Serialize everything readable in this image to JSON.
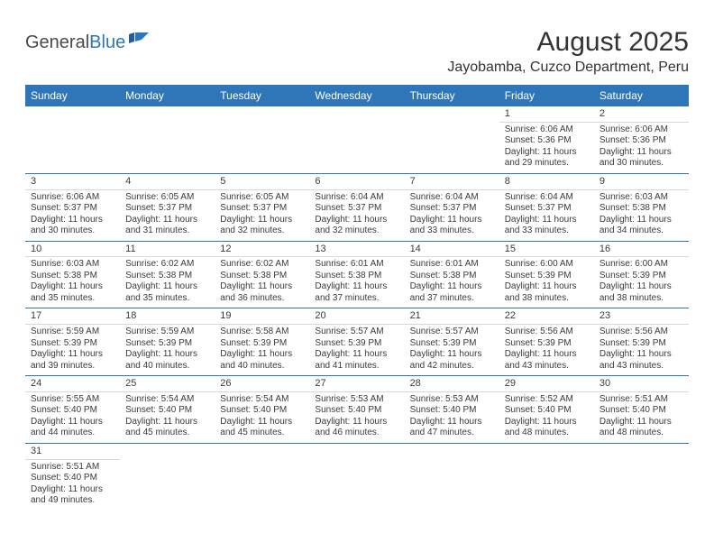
{
  "logo": {
    "general": "General",
    "blue": "Blue"
  },
  "title": "August 2025",
  "location": "Jayobamba, Cuzco Department, Peru",
  "colors": {
    "header_bg": "#2f76b8",
    "header_text": "#ffffff",
    "week_border": "#2f76b8",
    "day_divider": "#d8d8d8",
    "text": "#3a3a3a"
  },
  "day_names": [
    "Sunday",
    "Monday",
    "Tuesday",
    "Wednesday",
    "Thursday",
    "Friday",
    "Saturday"
  ],
  "weeks": [
    [
      null,
      null,
      null,
      null,
      null,
      {
        "n": "1",
        "sunrise": "Sunrise: 6:06 AM",
        "sunset": "Sunset: 5:36 PM",
        "daylight": "Daylight: 11 hours and 29 minutes."
      },
      {
        "n": "2",
        "sunrise": "Sunrise: 6:06 AM",
        "sunset": "Sunset: 5:36 PM",
        "daylight": "Daylight: 11 hours and 30 minutes."
      }
    ],
    [
      {
        "n": "3",
        "sunrise": "Sunrise: 6:06 AM",
        "sunset": "Sunset: 5:37 PM",
        "daylight": "Daylight: 11 hours and 30 minutes."
      },
      {
        "n": "4",
        "sunrise": "Sunrise: 6:05 AM",
        "sunset": "Sunset: 5:37 PM",
        "daylight": "Daylight: 11 hours and 31 minutes."
      },
      {
        "n": "5",
        "sunrise": "Sunrise: 6:05 AM",
        "sunset": "Sunset: 5:37 PM",
        "daylight": "Daylight: 11 hours and 32 minutes."
      },
      {
        "n": "6",
        "sunrise": "Sunrise: 6:04 AM",
        "sunset": "Sunset: 5:37 PM",
        "daylight": "Daylight: 11 hours and 32 minutes."
      },
      {
        "n": "7",
        "sunrise": "Sunrise: 6:04 AM",
        "sunset": "Sunset: 5:37 PM",
        "daylight": "Daylight: 11 hours and 33 minutes."
      },
      {
        "n": "8",
        "sunrise": "Sunrise: 6:04 AM",
        "sunset": "Sunset: 5:37 PM",
        "daylight": "Daylight: 11 hours and 33 minutes."
      },
      {
        "n": "9",
        "sunrise": "Sunrise: 6:03 AM",
        "sunset": "Sunset: 5:38 PM",
        "daylight": "Daylight: 11 hours and 34 minutes."
      }
    ],
    [
      {
        "n": "10",
        "sunrise": "Sunrise: 6:03 AM",
        "sunset": "Sunset: 5:38 PM",
        "daylight": "Daylight: 11 hours and 35 minutes."
      },
      {
        "n": "11",
        "sunrise": "Sunrise: 6:02 AM",
        "sunset": "Sunset: 5:38 PM",
        "daylight": "Daylight: 11 hours and 35 minutes."
      },
      {
        "n": "12",
        "sunrise": "Sunrise: 6:02 AM",
        "sunset": "Sunset: 5:38 PM",
        "daylight": "Daylight: 11 hours and 36 minutes."
      },
      {
        "n": "13",
        "sunrise": "Sunrise: 6:01 AM",
        "sunset": "Sunset: 5:38 PM",
        "daylight": "Daylight: 11 hours and 37 minutes."
      },
      {
        "n": "14",
        "sunrise": "Sunrise: 6:01 AM",
        "sunset": "Sunset: 5:38 PM",
        "daylight": "Daylight: 11 hours and 37 minutes."
      },
      {
        "n": "15",
        "sunrise": "Sunrise: 6:00 AM",
        "sunset": "Sunset: 5:39 PM",
        "daylight": "Daylight: 11 hours and 38 minutes."
      },
      {
        "n": "16",
        "sunrise": "Sunrise: 6:00 AM",
        "sunset": "Sunset: 5:39 PM",
        "daylight": "Daylight: 11 hours and 38 minutes."
      }
    ],
    [
      {
        "n": "17",
        "sunrise": "Sunrise: 5:59 AM",
        "sunset": "Sunset: 5:39 PM",
        "daylight": "Daylight: 11 hours and 39 minutes."
      },
      {
        "n": "18",
        "sunrise": "Sunrise: 5:59 AM",
        "sunset": "Sunset: 5:39 PM",
        "daylight": "Daylight: 11 hours and 40 minutes."
      },
      {
        "n": "19",
        "sunrise": "Sunrise: 5:58 AM",
        "sunset": "Sunset: 5:39 PM",
        "daylight": "Daylight: 11 hours and 40 minutes."
      },
      {
        "n": "20",
        "sunrise": "Sunrise: 5:57 AM",
        "sunset": "Sunset: 5:39 PM",
        "daylight": "Daylight: 11 hours and 41 minutes."
      },
      {
        "n": "21",
        "sunrise": "Sunrise: 5:57 AM",
        "sunset": "Sunset: 5:39 PM",
        "daylight": "Daylight: 11 hours and 42 minutes."
      },
      {
        "n": "22",
        "sunrise": "Sunrise: 5:56 AM",
        "sunset": "Sunset: 5:39 PM",
        "daylight": "Daylight: 11 hours and 43 minutes."
      },
      {
        "n": "23",
        "sunrise": "Sunrise: 5:56 AM",
        "sunset": "Sunset: 5:39 PM",
        "daylight": "Daylight: 11 hours and 43 minutes."
      }
    ],
    [
      {
        "n": "24",
        "sunrise": "Sunrise: 5:55 AM",
        "sunset": "Sunset: 5:40 PM",
        "daylight": "Daylight: 11 hours and 44 minutes."
      },
      {
        "n": "25",
        "sunrise": "Sunrise: 5:54 AM",
        "sunset": "Sunset: 5:40 PM",
        "daylight": "Daylight: 11 hours and 45 minutes."
      },
      {
        "n": "26",
        "sunrise": "Sunrise: 5:54 AM",
        "sunset": "Sunset: 5:40 PM",
        "daylight": "Daylight: 11 hours and 45 minutes."
      },
      {
        "n": "27",
        "sunrise": "Sunrise: 5:53 AM",
        "sunset": "Sunset: 5:40 PM",
        "daylight": "Daylight: 11 hours and 46 minutes."
      },
      {
        "n": "28",
        "sunrise": "Sunrise: 5:53 AM",
        "sunset": "Sunset: 5:40 PM",
        "daylight": "Daylight: 11 hours and 47 minutes."
      },
      {
        "n": "29",
        "sunrise": "Sunrise: 5:52 AM",
        "sunset": "Sunset: 5:40 PM",
        "daylight": "Daylight: 11 hours and 48 minutes."
      },
      {
        "n": "30",
        "sunrise": "Sunrise: 5:51 AM",
        "sunset": "Sunset: 5:40 PM",
        "daylight": "Daylight: 11 hours and 48 minutes."
      }
    ],
    [
      {
        "n": "31",
        "sunrise": "Sunrise: 5:51 AM",
        "sunset": "Sunset: 5:40 PM",
        "daylight": "Daylight: 11 hours and 49 minutes."
      },
      null,
      null,
      null,
      null,
      null,
      null
    ]
  ]
}
